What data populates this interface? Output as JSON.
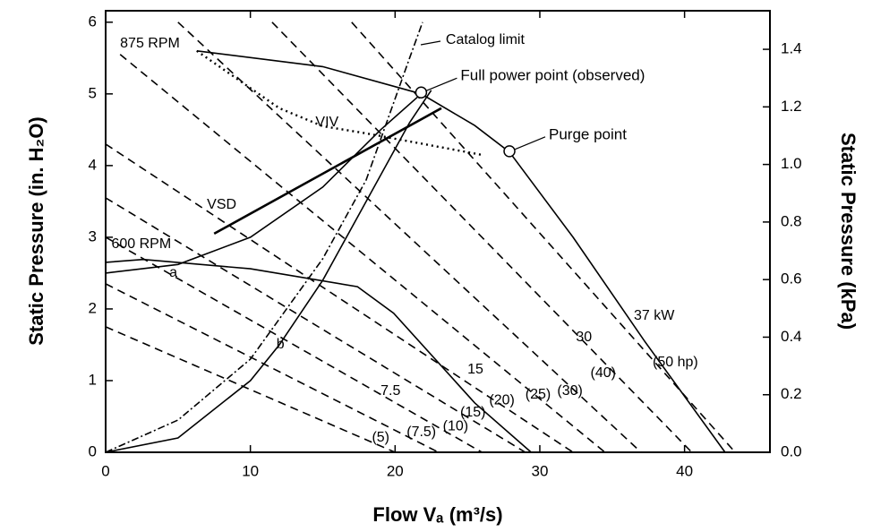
{
  "chart_data": {
    "type": "line",
    "x_label": "Flow Vₐ (m³/s)",
    "y_label": "Static Pressure (in. H₂O)",
    "y2_label": "Static Pressure (kPa)",
    "xlim": [
      0,
      45.9
    ],
    "xticks": [
      0,
      10,
      20,
      30,
      40
    ],
    "ylim": [
      0,
      6.16
    ],
    "yticks": [
      0,
      1,
      2,
      3,
      4,
      5,
      6
    ],
    "y2lim": [
      0,
      1.534
    ],
    "y2ticks": [
      {
        "value": 0,
        "label": "0.0"
      },
      {
        "value": 0.2,
        "label": "0.2"
      },
      {
        "value": 0.4,
        "label": "0.4"
      },
      {
        "value": 0.6,
        "label": "0.6"
      },
      {
        "value": 0.8,
        "label": "0.8"
      },
      {
        "value": 1.0,
        "label": "1.0"
      },
      {
        "value": 1.2,
        "label": "1.2"
      },
      {
        "value": 1.4,
        "label": "1.4"
      }
    ],
    "series": [
      {
        "style": "solid",
        "color": "#000000",
        "x": [
          6.3,
          15,
          21.8,
          25.5,
          27.9,
          32.3,
          37.2,
          42.8
        ],
        "values": [
          5.6,
          5.38,
          5.0,
          4.56,
          4.19,
          3.0,
          1.56,
          0
        ]
      },
      {
        "style": "solid",
        "color": "#000000",
        "x": [
          0,
          2.6,
          10,
          17.4,
          19.9,
          25.5,
          29.4
        ],
        "values": [
          2.65,
          2.69,
          2.56,
          2.31,
          1.94,
          0.69,
          0
        ]
      },
      {
        "style": "solid",
        "color": "#000000",
        "x": [
          0,
          5,
          10,
          15,
          19,
          21.8
        ],
        "values": [
          2.5,
          2.62,
          3.0,
          3.7,
          4.5,
          5.0
        ]
      },
      {
        "style": "solid",
        "color": "#000000",
        "x": [
          0,
          5,
          10,
          12,
          15,
          18,
          21,
          22.5
        ],
        "values": [
          0,
          0.2,
          1.0,
          1.5,
          2.4,
          3.5,
          4.6,
          5.05
        ]
      },
      {
        "style": "thick",
        "color": "#000000",
        "x": [
          7.5,
          23.2
        ],
        "values": [
          3.05,
          4.8
        ]
      },
      {
        "style": "dotted",
        "color": "#000000",
        "x": [
          6.3,
          12,
          15,
          18,
          26
        ],
        "values": [
          5.6,
          4.8,
          4.55,
          4.45,
          4.15
        ]
      },
      {
        "style": "dashdot",
        "color": "#000000",
        "x": [
          0,
          5,
          10,
          15,
          18,
          21,
          21.9
        ],
        "values": [
          0,
          0.45,
          1.3,
          2.7,
          3.8,
          5.5,
          6
        ]
      },
      {
        "style": "dashed",
        "color": "#000000",
        "x": [
          0,
          20
        ],
        "values": [
          1.75,
          0
        ]
      },
      {
        "style": "dashed",
        "color": "#000000",
        "x": [
          0,
          23
        ],
        "values": [
          2.35,
          0
        ]
      },
      {
        "style": "dashed",
        "color": "#000000",
        "x": [
          0,
          26
        ],
        "values": [
          3.0,
          0
        ]
      },
      {
        "style": "dashed",
        "color": "#000000",
        "x": [
          0,
          29
        ],
        "values": [
          3.55,
          0
        ]
      },
      {
        "style": "dashed",
        "color": "#000000",
        "x": [
          0,
          32.3
        ],
        "values": [
          4.3,
          0
        ]
      },
      {
        "style": "dashed",
        "color": "#000000",
        "x": [
          1,
          34.5
        ],
        "values": [
          5.55,
          0
        ]
      },
      {
        "style": "dashed",
        "color": "#000000",
        "x": [
          5,
          37
        ],
        "values": [
          6,
          0
        ]
      },
      {
        "style": "dashed",
        "color": "#000000",
        "x": [
          11.5,
          40.5
        ],
        "values": [
          6,
          0
        ]
      },
      {
        "style": "dashed",
        "color": "#000000",
        "x": [
          17,
          43.5
        ],
        "values": [
          6,
          0
        ]
      }
    ],
    "points": [
      {
        "label": "Full power point (observed)",
        "x": 21.8,
        "y": 5.02
      },
      {
        "label": "Purge point",
        "x": 27.9,
        "y": 4.2
      }
    ],
    "annotations": [
      {
        "text": "875 RPM",
        "x": 1.0,
        "y": 5.7
      },
      {
        "text": "600 RPM",
        "x": 0.4,
        "y": 2.9
      },
      {
        "text": "a",
        "x": 4.4,
        "y": 2.5
      },
      {
        "text": "b",
        "x": 11.8,
        "y": 1.5
      },
      {
        "text": "VIV",
        "x": 14.5,
        "y": 4.6
      },
      {
        "text": "VSD",
        "x": 7.0,
        "y": 3.45
      },
      {
        "text": "Catalog limit",
        "x": 23.5,
        "y": 5.75
      },
      {
        "text": "37 kW",
        "x": 36.5,
        "y": 1.9
      },
      {
        "text": "30",
        "x": 32.5,
        "y": 1.6
      },
      {
        "text": "15",
        "x": 25.0,
        "y": 1.15
      },
      {
        "text": "7.5",
        "x": 19.0,
        "y": 0.85
      },
      {
        "text": "(50 hp)",
        "x": 37.8,
        "y": 1.25
      },
      {
        "text": "(40)",
        "x": 33.5,
        "y": 1.1
      },
      {
        "text": "(30)",
        "x": 31.2,
        "y": 0.85
      },
      {
        "text": "(25)",
        "x": 29.0,
        "y": 0.8
      },
      {
        "text": "(20)",
        "x": 26.5,
        "y": 0.72
      },
      {
        "text": "(15)",
        "x": 24.5,
        "y": 0.55
      },
      {
        "text": "(10)",
        "x": 23.3,
        "y": 0.36
      },
      {
        "text": "(7.5)",
        "x": 20.8,
        "y": 0.28
      },
      {
        "text": "(5)",
        "x": 18.4,
        "y": 0.2
      }
    ]
  }
}
